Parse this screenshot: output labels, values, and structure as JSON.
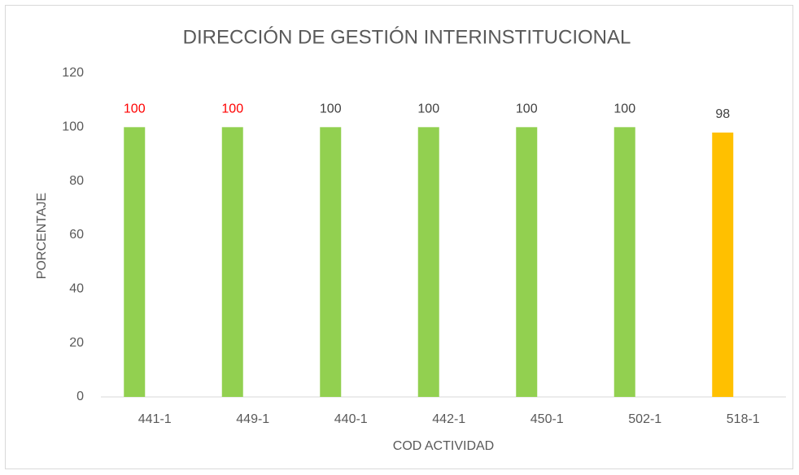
{
  "chart_data": {
    "type": "bar",
    "title": "DIRECCIÓN DE GESTIÓN INTERINSTITUCIONAL",
    "x_label": "COD ACTIVIDAD",
    "y_label": "PORCENTAJE",
    "categories": [
      "441-1",
      "449-1",
      "440-1",
      "442-1",
      "450-1",
      "502-1",
      "518-1"
    ],
    "values": [
      100,
      100,
      100,
      100,
      100,
      100,
      98
    ],
    "colors": [
      "#92d050",
      "#92d050",
      "#92d050",
      "#92d050",
      "#92d050",
      "#92d050",
      "#ffc000"
    ],
    "value_label_colors": [
      "#ff0000",
      "#ff0000",
      "#404040",
      "#404040",
      "#404040",
      "#404040",
      "#404040"
    ],
    "ylim": [
      0,
      120
    ],
    "yticks": [
      0,
      20,
      40,
      60,
      80,
      100,
      120
    ],
    "grid": false
  }
}
